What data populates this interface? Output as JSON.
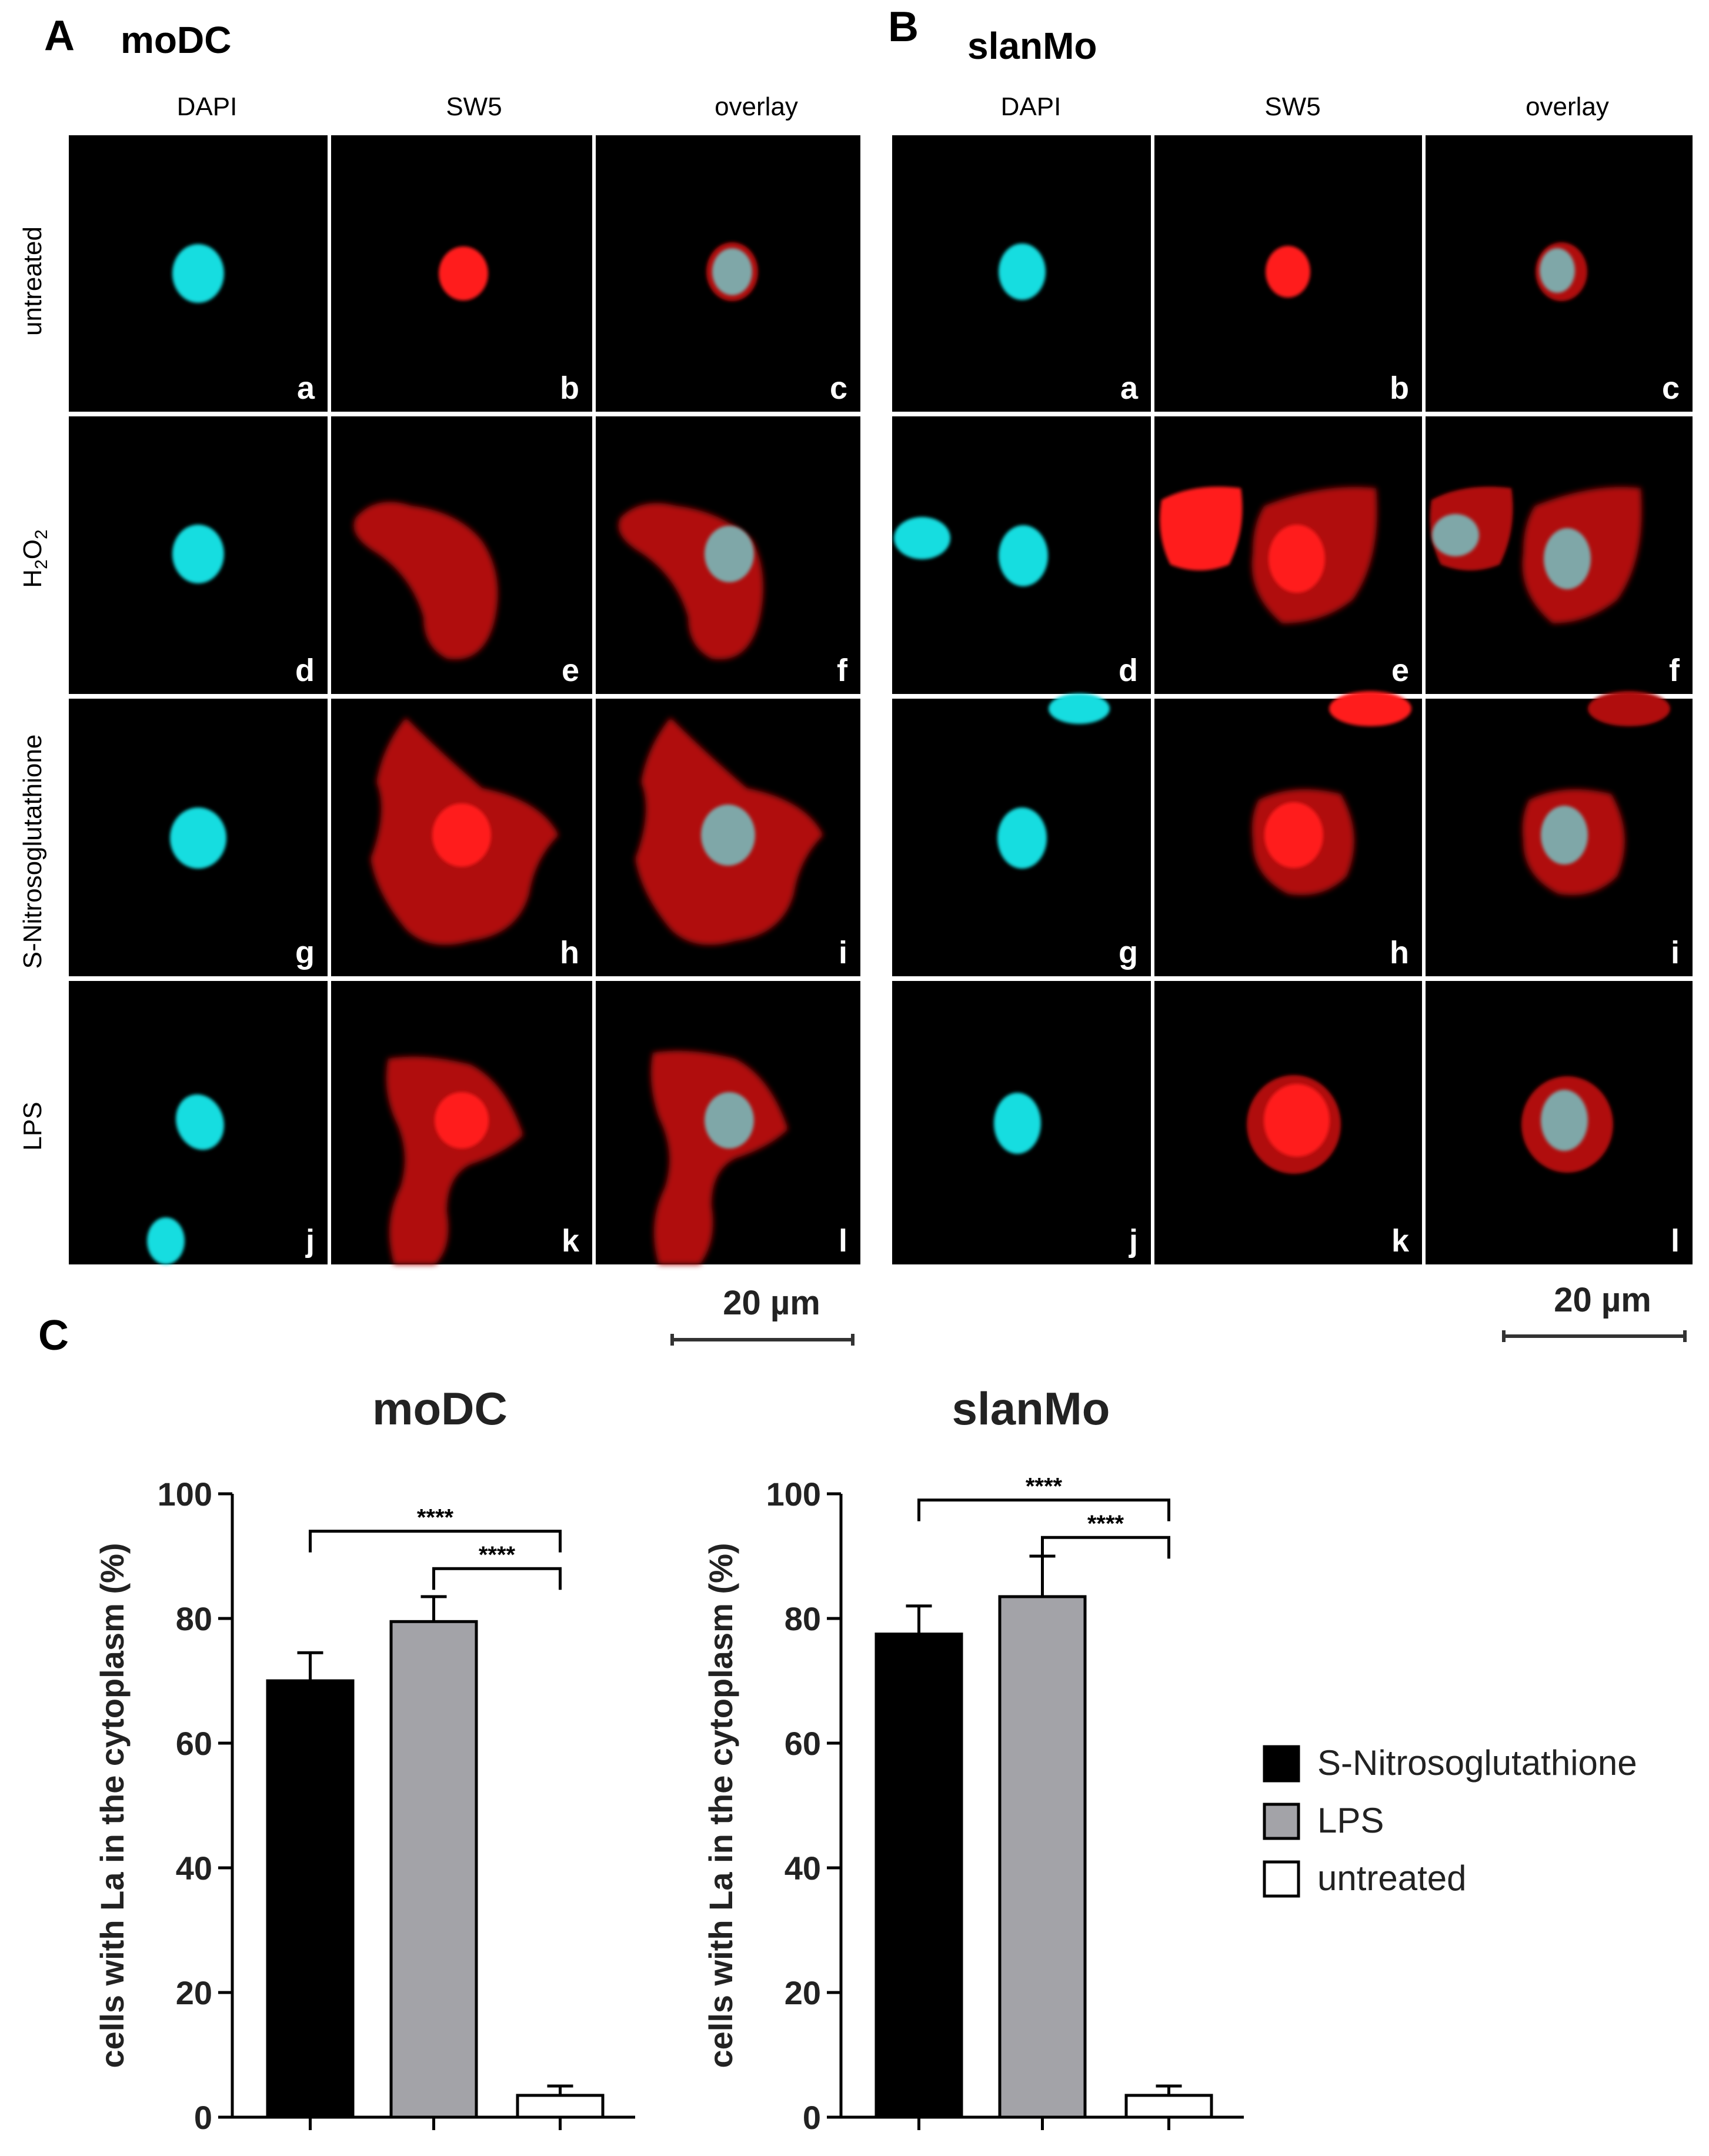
{
  "panel_letters": {
    "a": "A",
    "b": "B",
    "c": "C"
  },
  "panel_titles": {
    "a": "moDC",
    "b": "slanMo"
  },
  "column_headers": [
    "DAPI",
    "SW5",
    "overlay"
  ],
  "row_labels": [
    "untreated",
    "H2O2",
    "S-Nitrosoglutathione",
    "LPS"
  ],
  "h2o2_label": {
    "main": "H",
    "sub1": "2",
    "mid": "O",
    "sub2": "2"
  },
  "tile_letters": [
    "a",
    "b",
    "c",
    "d",
    "e",
    "f",
    "g",
    "h",
    "i",
    "j",
    "k",
    "l"
  ],
  "scale_bar_label": "20 µm",
  "colors": {
    "dapi": "#12dde0",
    "sw5": "#ff1a1a",
    "sw5_dark": "#b01010",
    "overlay_nucleus": "#7fa7a8",
    "background": "#000000"
  },
  "legend": [
    {
      "label": "S-Nitrosoglutathione",
      "color": "#000000"
    },
    {
      "label": "LPS",
      "color": "#a3a3a8"
    },
    {
      "label": "untreated",
      "color": "#ffffff"
    }
  ],
  "chart_data": [
    {
      "type": "bar",
      "title": "moDC",
      "ylabel": "cells with La in the cytoplasm (%)",
      "ylim": [
        0,
        100
      ],
      "yticks": [
        0,
        20,
        40,
        60,
        80,
        100
      ],
      "categories": [
        "S-Nitrosoglutathione",
        "LPS",
        "untreated"
      ],
      "values": [
        70,
        79.5,
        3.5
      ],
      "errors": [
        4.5,
        4,
        1.5
      ],
      "colors": [
        "#000000",
        "#a3a3a8",
        "#ffffff"
      ],
      "significance": [
        {
          "from": 0,
          "to": 2,
          "label": "****"
        },
        {
          "from": 1,
          "to": 2,
          "label": "****"
        }
      ]
    },
    {
      "type": "bar",
      "title": "slanMo",
      "ylabel": "cells with La in the cytoplasm (%)",
      "ylim": [
        0,
        100
      ],
      "yticks": [
        0,
        20,
        40,
        60,
        80,
        100
      ],
      "categories": [
        "S-Nitrosoglutathione",
        "LPS",
        "untreated"
      ],
      "values": [
        77.5,
        83.5,
        3.5
      ],
      "errors": [
        4.5,
        6.5,
        1.5
      ],
      "colors": [
        "#000000",
        "#a3a3a8",
        "#ffffff"
      ],
      "significance": [
        {
          "from": 0,
          "to": 2,
          "label": "****"
        },
        {
          "from": 1,
          "to": 2,
          "label": "****"
        }
      ]
    }
  ]
}
